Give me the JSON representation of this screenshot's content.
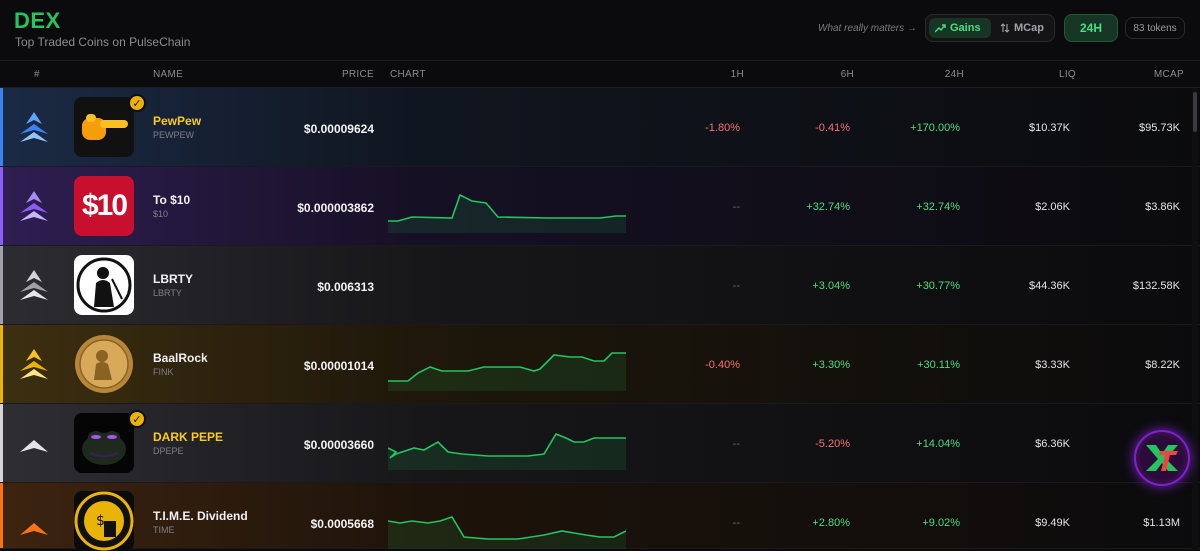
{
  "header": {
    "brand": "DEX",
    "subtitle": "Top Traded Coins on PulseChain",
    "tagline": "What really matters →",
    "sort_gains": "Gains",
    "sort_mcap": "MCap",
    "timeframe": "24H",
    "token_count": "83 tokens"
  },
  "columns": {
    "rank": "#",
    "name": "NAME",
    "price": "PRICE",
    "chart": "CHART",
    "h1": "1H",
    "h6": "6H",
    "h24": "24H",
    "liq": "LIQ",
    "mcap": "MCAP"
  },
  "rows": [
    {
      "name": "PewPew",
      "symbol": "PEWPEW",
      "price": "$0.00009624",
      "h1": "-1.80%",
      "h6": "-0.41%",
      "h24": "+170.00%",
      "liq": "$10.37K",
      "mcap": "$95.73K",
      "verified": true,
      "tier": "blue",
      "logo": "pointing-hand"
    },
    {
      "name": "To $10",
      "symbol": "$10",
      "price": "$0.000003862",
      "h1": "--",
      "h6": "+32.74%",
      "h24": "+32.74%",
      "liq": "$2.06K",
      "mcap": "$3.86K",
      "verified": false,
      "tier": "purple",
      "logo": "$10"
    },
    {
      "name": "LBRTY",
      "symbol": "LBRTY",
      "price": "$0.006313",
      "h1": "--",
      "h6": "+3.04%",
      "h24": "+30.77%",
      "liq": "$44.36K",
      "mcap": "$132.58K",
      "verified": false,
      "tier": "silver",
      "logo": "silhouette"
    },
    {
      "name": "BaalRock",
      "symbol": "FINK",
      "price": "$0.00001014",
      "h1": "-0.40%",
      "h6": "+3.30%",
      "h24": "+30.11%",
      "liq": "$3.33K",
      "mcap": "$8.22K",
      "verified": false,
      "tier": "gold",
      "logo": "coin"
    },
    {
      "name": "DARK PEPE",
      "symbol": "DPEPE",
      "price": "$0.00003660",
      "h1": "--",
      "h6": "-5.20%",
      "h24": "+14.04%",
      "liq": "$6.36K",
      "mcap": "",
      "verified": true,
      "tier": "white",
      "logo": "pepe"
    },
    {
      "name": "T.I.M.E. Dividend",
      "symbol": "TIME",
      "price": "$0.0005668",
      "h1": "--",
      "h6": "+2.80%",
      "h24": "+9.02%",
      "liq": "$9.49K",
      "mcap": "$1.13M",
      "verified": false,
      "tier": "orange",
      "logo": "time-coin"
    }
  ],
  "colors": {
    "accent": "#22c55e",
    "positive": "#4ade80",
    "negative": "#f87171",
    "verified": "#eab308"
  }
}
